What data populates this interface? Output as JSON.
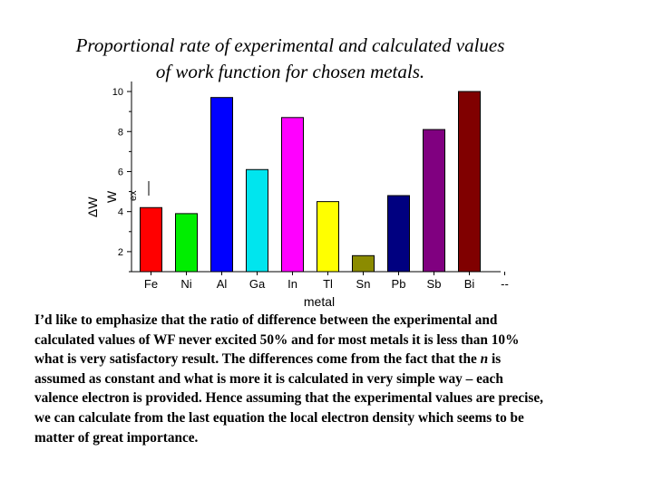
{
  "title_lines": [
    "Proportional rate of experimental and calculated values",
    "of work function for chosen metals."
  ],
  "chart_data": {
    "type": "bar",
    "categories": [
      "Fe",
      "Ni",
      "Al",
      "Ga",
      "In",
      "Tl",
      "Sn",
      "Pb",
      "Sb",
      "Bi",
      "--"
    ],
    "values": [
      4.2,
      3.9,
      9.7,
      6.1,
      8.7,
      4.5,
      1.8,
      4.8,
      8.1,
      10.0,
      null
    ],
    "bar_colors": [
      "#ff0000",
      "#00ee00",
      "#0000ff",
      "#00e5ee",
      "#ff00ff",
      "#ffff00",
      "#8b8b00",
      "#000080",
      "#800080",
      "#800000"
    ],
    "xlabel": "metal",
    "ylabel_top": "ΔW",
    "ylabel_bottom": "W",
    "ylabel_sub": "ex",
    "yticks": [
      "2",
      "4",
      "6",
      "8",
      "10"
    ],
    "ylim": [
      1,
      10.5
    ]
  },
  "body_lines": [
    "I’d like to emphasize that the ratio of difference between the experimental and",
    "calculated values of WF never excited 50% and for most metals it is less than 10%",
    "what is very satisfactory result. The differences come from the fact that the n is",
    "assumed as constant and what is more it is calculated in very simple way – each",
    "valence electron is provided. Hence assuming that the experimental values are precise,",
    "we can calculate from the last equation  the local electron density which seems to be",
    "matter of great importance."
  ]
}
